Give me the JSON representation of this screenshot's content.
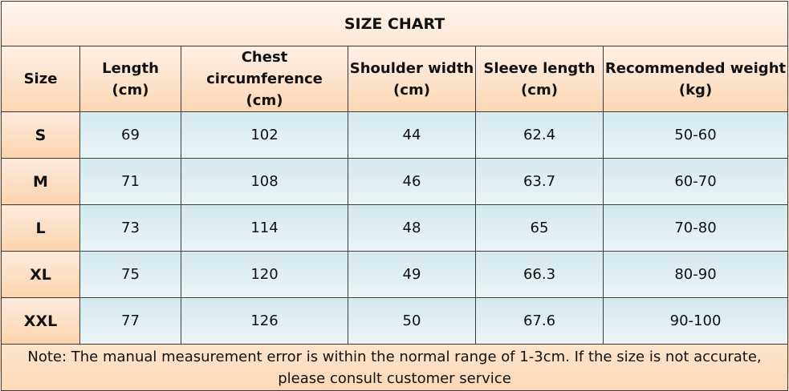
{
  "title": "SIZE CHART",
  "headers": [
    {
      "line1": "Size",
      "line2": ""
    },
    {
      "line1": "Length",
      "line2": "(cm)"
    },
    {
      "line1": "Chest circumference",
      "line2": "(cm)"
    },
    {
      "line1": "Shoulder width",
      "line2": "(cm)"
    },
    {
      "line1": "Sleeve length",
      "line2": "(cm)"
    },
    {
      "line1": "Recommended weight",
      "line2": "(kg)"
    }
  ],
  "rows": [
    {
      "size": "S",
      "length": "69",
      "chest": "102",
      "shoulder": "44",
      "sleeve": "62.4",
      "weight": "50-60"
    },
    {
      "size": "M",
      "length": "71",
      "chest": "108",
      "shoulder": "46",
      "sleeve": "63.7",
      "weight": "60-70"
    },
    {
      "size": "L",
      "length": "73",
      "chest": "114",
      "shoulder": "48",
      "sleeve": "65",
      "weight": "70-80"
    },
    {
      "size": "XL",
      "length": "75",
      "chest": "120",
      "shoulder": "49",
      "sleeve": "66.3",
      "weight": "80-90"
    },
    {
      "size": "XXL",
      "length": "77",
      "chest": "126",
      "shoulder": "50",
      "sleeve": "67.6",
      "weight": "90-100"
    }
  ],
  "note": {
    "line1": "Note: The manual measurement error is within the normal range of 1-3cm. If the size is not accurate,",
    "line2": "please consult customer service"
  }
}
